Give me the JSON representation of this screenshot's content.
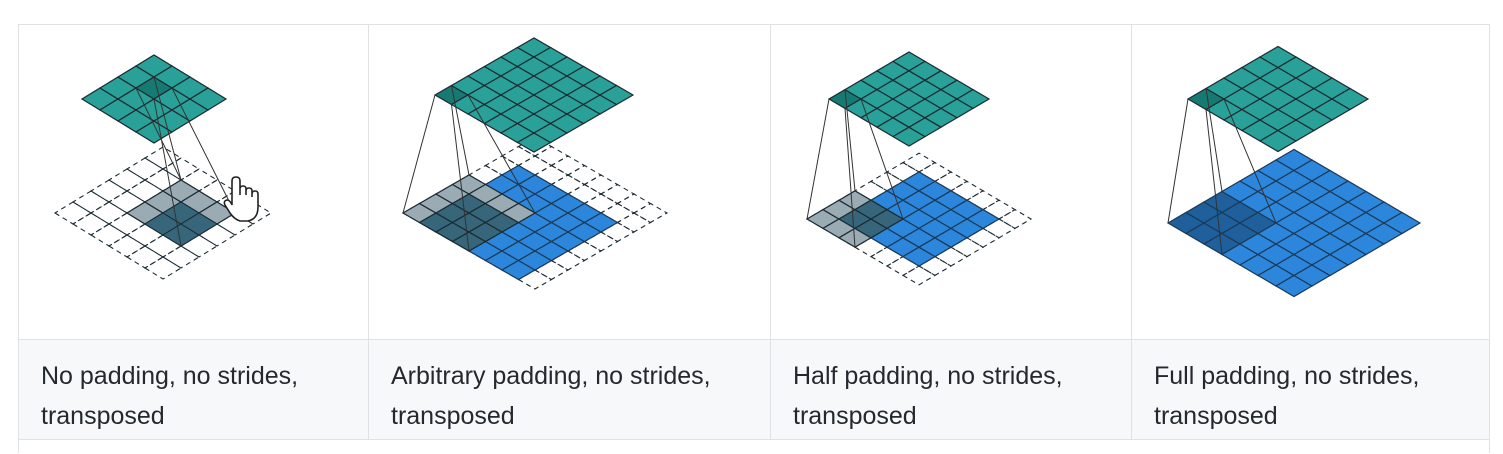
{
  "colors": {
    "output": "#2aa198",
    "output_dark": "#177a72",
    "input": "#2b86dc",
    "input_dark": "#1e5f9c",
    "kernel": "#9aabb3",
    "kernel_dark": "#37657a",
    "border": "#dfe2e5",
    "caption_bg": "#f6f8fa"
  },
  "columns": [
    {
      "caption_line1": "No padding, no strides,",
      "caption_line2": "transposed"
    },
    {
      "caption_line1": "Arbitrary padding, no strides,",
      "caption_line2": "transposed"
    },
    {
      "caption_line1": "Half padding, no strides,",
      "caption_line2": "transposed"
    },
    {
      "caption_line1": "Full padding, no strides,",
      "caption_line2": "transposed"
    }
  ],
  "cursor_icon": "hand-pointer-icon"
}
